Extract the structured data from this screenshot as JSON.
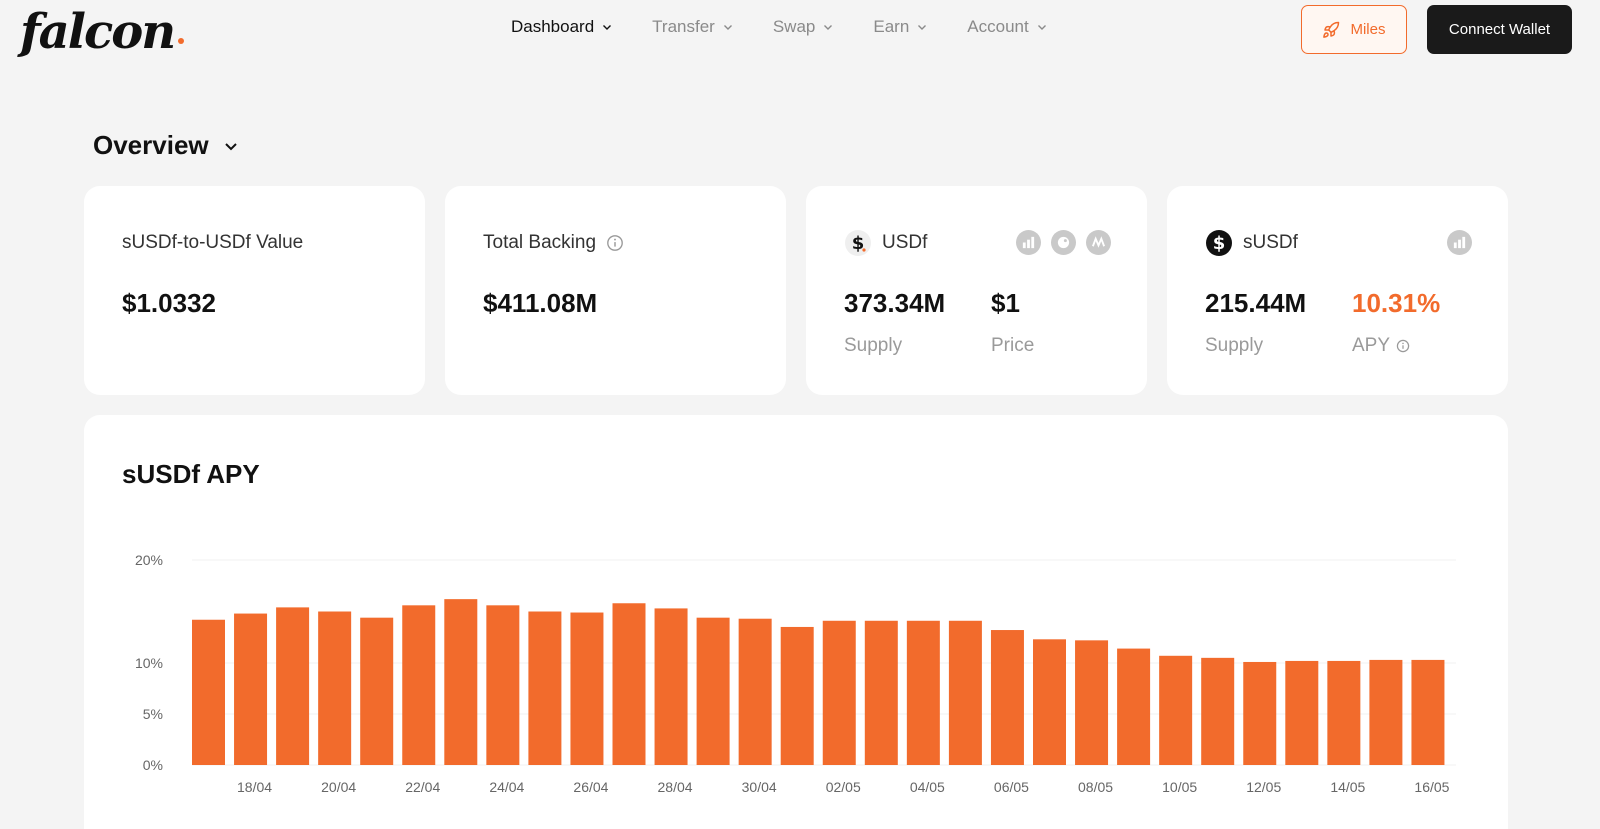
{
  "header": {
    "logo": "falcon",
    "nav": [
      {
        "label": "Dashboard",
        "active": true
      },
      {
        "label": "Transfer",
        "active": false
      },
      {
        "label": "Swap",
        "active": false
      },
      {
        "label": "Earn",
        "active": false
      },
      {
        "label": "Account",
        "active": false
      }
    ],
    "miles_label": "Miles",
    "connect_label": "Connect Wallet"
  },
  "overview": {
    "title": "Overview"
  },
  "cards": {
    "value_card": {
      "label": "sUSDf-to-USDf Value",
      "value": "$1.0332"
    },
    "backing_card": {
      "label": "Total Backing",
      "value": "$411.08M"
    },
    "usdf_card": {
      "token": "USDf",
      "supply_value": "373.34M",
      "supply_label": "Supply",
      "price_value": "$1",
      "price_label": "Price"
    },
    "susdf_card": {
      "token": "sUSDf",
      "supply_value": "215.44M",
      "supply_label": "Supply",
      "apy_value": "10.31%",
      "apy_label": "APY"
    }
  },
  "colors": {
    "accent": "#f26b2c",
    "dark": "#1a1a1a"
  },
  "chart_data": {
    "type": "bar",
    "title": "sUSDf APY",
    "yticks": [
      "0%",
      "5%",
      "10%",
      "20%"
    ],
    "y_tick_values": [
      0,
      5,
      10,
      20
    ],
    "xticks": [
      "18/04",
      "20/04",
      "22/04",
      "24/04",
      "26/04",
      "28/04",
      "30/04",
      "02/05",
      "04/05",
      "06/05",
      "08/05",
      "10/05",
      "12/05",
      "14/05",
      "16/05"
    ],
    "values": [
      14.2,
      14.8,
      15.4,
      15.0,
      14.4,
      15.6,
      16.2,
      15.6,
      15.0,
      14.9,
      15.8,
      15.3,
      14.4,
      14.3,
      13.5,
      14.1,
      14.1,
      14.1,
      14.1,
      13.2,
      12.3,
      12.2,
      11.4,
      10.7,
      10.5,
      10.1,
      10.2,
      10.2,
      10.3,
      10.3
    ],
    "grid": true
  }
}
